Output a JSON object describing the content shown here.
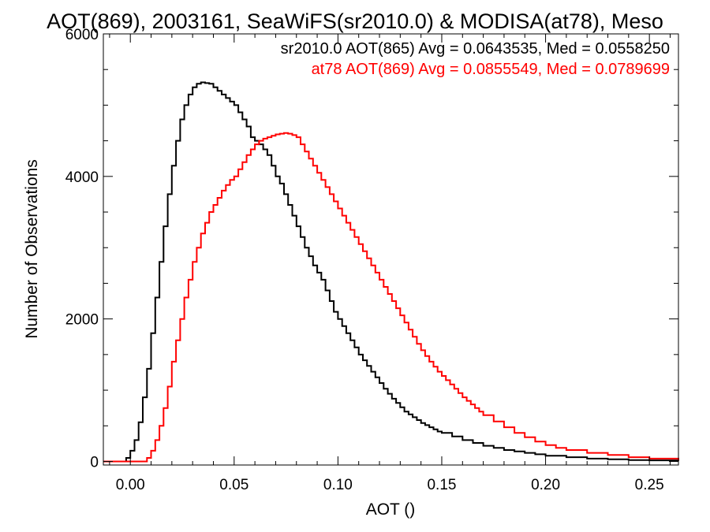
{
  "chart_data": {
    "type": "line",
    "title": "AOT(869), 2003161, SeaWiFS(sr2010.0) & MODISA(at78), Meso",
    "xlabel": "AOT ()",
    "ylabel": "Number of Observations",
    "xlim": [
      -0.013,
      0.264
    ],
    "ylim": [
      -50,
      6000
    ],
    "x_ticks": [
      0.0,
      0.05,
      0.1,
      0.15,
      0.2,
      0.25
    ],
    "x_tick_labels": [
      "0.00",
      "0.05",
      "0.10",
      "0.15",
      "0.20",
      "0.25"
    ],
    "y_ticks": [
      0,
      2000,
      4000,
      6000
    ],
    "y_tick_labels": [
      "0",
      "2000",
      "4000",
      "6000"
    ],
    "grid": false,
    "legend_position": "top-right",
    "series": [
      {
        "name": "sr2010.0 AOT(865) Avg = 0.0643535, Med = 0.0558250",
        "color": "#000000",
        "points": [
          [
            -0.013,
            0
          ],
          [
            -0.004,
            0
          ],
          [
            -0.002,
            50
          ],
          [
            0.0,
            150
          ],
          [
            0.002,
            300
          ],
          [
            0.004,
            550
          ],
          [
            0.006,
            900
          ],
          [
            0.008,
            1300
          ],
          [
            0.01,
            1800
          ],
          [
            0.012,
            2300
          ],
          [
            0.014,
            2800
          ],
          [
            0.016,
            3300
          ],
          [
            0.018,
            3750
          ],
          [
            0.02,
            4150
          ],
          [
            0.022,
            4500
          ],
          [
            0.024,
            4800
          ],
          [
            0.026,
            5000
          ],
          [
            0.028,
            5150
          ],
          [
            0.03,
            5250
          ],
          [
            0.032,
            5300
          ],
          [
            0.034,
            5320
          ],
          [
            0.036,
            5310
          ],
          [
            0.038,
            5300
          ],
          [
            0.04,
            5250
          ],
          [
            0.042,
            5200
          ],
          [
            0.044,
            5150
          ],
          [
            0.046,
            5100
          ],
          [
            0.048,
            5050
          ],
          [
            0.05,
            5000
          ],
          [
            0.052,
            4900
          ],
          [
            0.054,
            4800
          ],
          [
            0.056,
            4700
          ],
          [
            0.058,
            4550
          ],
          [
            0.06,
            4500
          ],
          [
            0.062,
            4450
          ],
          [
            0.064,
            4380
          ],
          [
            0.066,
            4300
          ],
          [
            0.068,
            4150
          ],
          [
            0.07,
            4000
          ],
          [
            0.072,
            3900
          ],
          [
            0.074,
            3750
          ],
          [
            0.076,
            3600
          ],
          [
            0.078,
            3450
          ],
          [
            0.08,
            3300
          ],
          [
            0.082,
            3150
          ],
          [
            0.084,
            3000
          ],
          [
            0.086,
            2880
          ],
          [
            0.088,
            2750
          ],
          [
            0.09,
            2650
          ],
          [
            0.092,
            2550
          ],
          [
            0.094,
            2400
          ],
          [
            0.096,
            2250
          ],
          [
            0.098,
            2100
          ],
          [
            0.1,
            2000
          ],
          [
            0.102,
            1900
          ],
          [
            0.104,
            1800
          ],
          [
            0.106,
            1700
          ],
          [
            0.108,
            1600
          ],
          [
            0.11,
            1500
          ],
          [
            0.112,
            1420
          ],
          [
            0.114,
            1340
          ],
          [
            0.116,
            1260
          ],
          [
            0.118,
            1180
          ],
          [
            0.12,
            1100
          ],
          [
            0.122,
            1020
          ],
          [
            0.124,
            950
          ],
          [
            0.126,
            880
          ],
          [
            0.128,
            820
          ],
          [
            0.13,
            760
          ],
          [
            0.132,
            700
          ],
          [
            0.134,
            660
          ],
          [
            0.136,
            620
          ],
          [
            0.138,
            580
          ],
          [
            0.14,
            540
          ],
          [
            0.142,
            510
          ],
          [
            0.144,
            480
          ],
          [
            0.146,
            450
          ],
          [
            0.148,
            420
          ],
          [
            0.15,
            400
          ],
          [
            0.155,
            350
          ],
          [
            0.16,
            300
          ],
          [
            0.165,
            260
          ],
          [
            0.17,
            220
          ],
          [
            0.175,
            190
          ],
          [
            0.18,
            160
          ],
          [
            0.185,
            140
          ],
          [
            0.19,
            120
          ],
          [
            0.195,
            100
          ],
          [
            0.2,
            80
          ],
          [
            0.21,
            60
          ],
          [
            0.22,
            40
          ],
          [
            0.23,
            30
          ],
          [
            0.24,
            20
          ],
          [
            0.25,
            15
          ],
          [
            0.264,
            10
          ]
        ]
      },
      {
        "name": "at78 AOT(869) Avg = 0.0855549, Med = 0.0789699",
        "color": "#ff0000",
        "points": [
          [
            -0.013,
            0
          ],
          [
            0.006,
            0
          ],
          [
            0.008,
            50
          ],
          [
            0.01,
            150
          ],
          [
            0.012,
            300
          ],
          [
            0.014,
            500
          ],
          [
            0.016,
            750
          ],
          [
            0.018,
            1050
          ],
          [
            0.02,
            1400
          ],
          [
            0.022,
            1700
          ],
          [
            0.024,
            2000
          ],
          [
            0.026,
            2300
          ],
          [
            0.028,
            2550
          ],
          [
            0.03,
            2800
          ],
          [
            0.032,
            3000
          ],
          [
            0.034,
            3200
          ],
          [
            0.036,
            3350
          ],
          [
            0.038,
            3500
          ],
          [
            0.04,
            3600
          ],
          [
            0.042,
            3700
          ],
          [
            0.044,
            3800
          ],
          [
            0.046,
            3880
          ],
          [
            0.048,
            3950
          ],
          [
            0.05,
            4000
          ],
          [
            0.052,
            4100
          ],
          [
            0.054,
            4200
          ],
          [
            0.056,
            4300
          ],
          [
            0.058,
            4380
          ],
          [
            0.06,
            4450
          ],
          [
            0.062,
            4500
          ],
          [
            0.064,
            4530
          ],
          [
            0.066,
            4550
          ],
          [
            0.068,
            4570
          ],
          [
            0.07,
            4590
          ],
          [
            0.072,
            4600
          ],
          [
            0.074,
            4610
          ],
          [
            0.076,
            4600
          ],
          [
            0.078,
            4580
          ],
          [
            0.08,
            4550
          ],
          [
            0.082,
            4450
          ],
          [
            0.084,
            4350
          ],
          [
            0.086,
            4250
          ],
          [
            0.088,
            4150
          ],
          [
            0.09,
            4050
          ],
          [
            0.092,
            3950
          ],
          [
            0.094,
            3850
          ],
          [
            0.096,
            3750
          ],
          [
            0.098,
            3650
          ],
          [
            0.1,
            3550
          ],
          [
            0.102,
            3450
          ],
          [
            0.104,
            3350
          ],
          [
            0.106,
            3250
          ],
          [
            0.108,
            3150
          ],
          [
            0.11,
            3050
          ],
          [
            0.112,
            2950
          ],
          [
            0.114,
            2850
          ],
          [
            0.116,
            2750
          ],
          [
            0.118,
            2650
          ],
          [
            0.12,
            2550
          ],
          [
            0.122,
            2450
          ],
          [
            0.124,
            2350
          ],
          [
            0.126,
            2250
          ],
          [
            0.128,
            2150
          ],
          [
            0.13,
            2050
          ],
          [
            0.132,
            1950
          ],
          [
            0.134,
            1850
          ],
          [
            0.136,
            1750
          ],
          [
            0.138,
            1650
          ],
          [
            0.14,
            1560
          ],
          [
            0.142,
            1480
          ],
          [
            0.144,
            1400
          ],
          [
            0.146,
            1330
          ],
          [
            0.148,
            1260
          ],
          [
            0.15,
            1200
          ],
          [
            0.152,
            1140
          ],
          [
            0.154,
            1080
          ],
          [
            0.156,
            1020
          ],
          [
            0.158,
            960
          ],
          [
            0.16,
            900
          ],
          [
            0.162,
            850
          ],
          [
            0.164,
            800
          ],
          [
            0.166,
            750
          ],
          [
            0.168,
            700
          ],
          [
            0.17,
            650
          ],
          [
            0.175,
            560
          ],
          [
            0.18,
            480
          ],
          [
            0.185,
            400
          ],
          [
            0.19,
            340
          ],
          [
            0.195,
            280
          ],
          [
            0.2,
            230
          ],
          [
            0.205,
            190
          ],
          [
            0.21,
            160
          ],
          [
            0.22,
            120
          ],
          [
            0.23,
            90
          ],
          [
            0.24,
            60
          ],
          [
            0.25,
            40
          ],
          [
            0.264,
            20
          ]
        ]
      }
    ]
  }
}
